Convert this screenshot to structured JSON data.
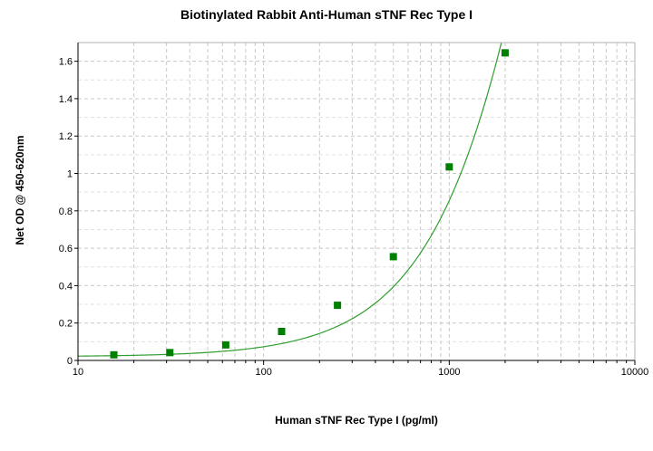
{
  "chart_data": {
    "type": "scatter",
    "title": "Biotinylated Rabbit Anti-Human sTNF Rec Type I",
    "xlabel": "Human sTNF Rec Type I (pg/ml)",
    "ylabel": "Net OD @ 450-620nm",
    "x_scale": "log",
    "xlim": [
      10,
      10000
    ],
    "ylim": [
      0,
      1.7
    ],
    "x_ticks": [
      10,
      100,
      1000,
      10000
    ],
    "x_tick_labels": [
      "10",
      "100",
      "1000",
      "10000"
    ],
    "y_ticks": [
      0,
      0.2,
      0.4,
      0.6,
      0.8,
      1,
      1.2,
      1.4,
      1.6
    ],
    "y_tick_labels": [
      "0",
      "0.2",
      "0.4",
      "0.6",
      "0.8",
      "1",
      "1.2",
      "1.4",
      "1.6"
    ],
    "grid": true,
    "series": [
      {
        "marker": "square",
        "color": "#008000",
        "x": [
          15.6,
          31.25,
          62.5,
          125,
          250,
          500,
          1000,
          2000
        ],
        "y": [
          0.03,
          0.042,
          0.083,
          0.155,
          0.295,
          0.555,
          1.035,
          1.645
        ]
      }
    ],
    "fit_curve": {
      "color": "#2e9e2e"
    }
  }
}
